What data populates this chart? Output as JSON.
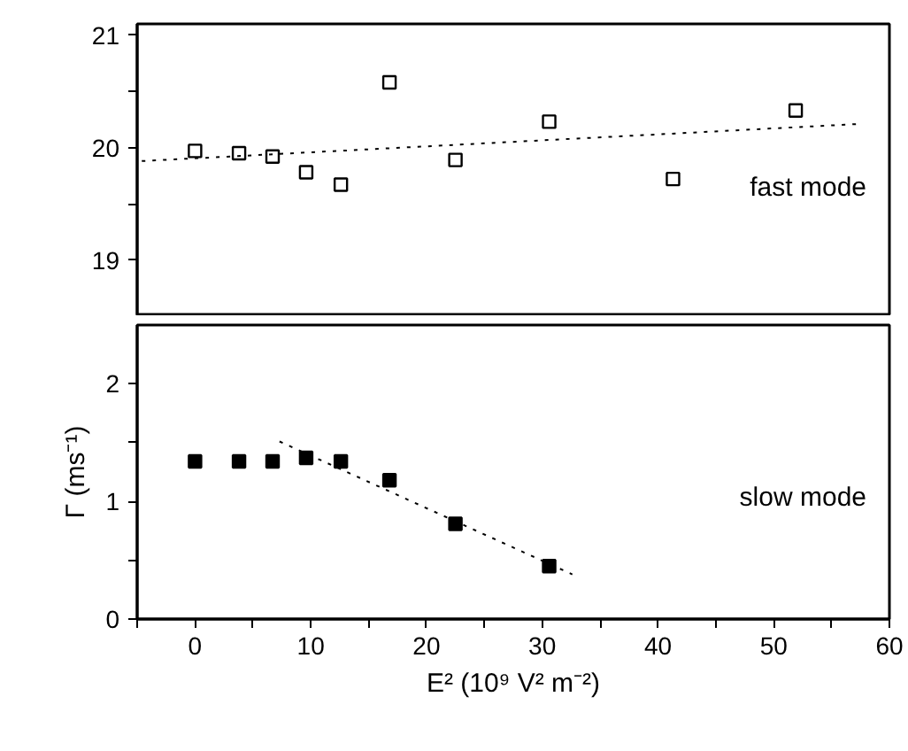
{
  "chart_data": [
    {
      "type": "scatter",
      "ylim": [
        18.5,
        21.1
      ],
      "yticks": [
        19,
        {
          "value": 19.5,
          "label": null
        },
        20,
        {
          "value": 20.5,
          "label": null
        },
        21
      ],
      "xlim": [
        -5,
        60
      ],
      "tick_labels": "y",
      "grid": false,
      "annotations": [
        "fast mode"
      ],
      "series": [
        {
          "marker": "square",
          "color": "#000000",
          "x": [
            0,
            3.8,
            6.7,
            9.6,
            12.6,
            16.8,
            22.5,
            30.6,
            41.3,
            51.9
          ],
          "values": [
            19.97,
            19.95,
            19.92,
            19.78,
            19.67,
            20.58,
            19.89,
            20.23,
            19.72,
            20.33
          ]
        },
        {
          "type": "line",
          "line_style": "dotted",
          "color": "#000000",
          "x": [
            -4.6,
            57.4
          ],
          "values": [
            19.88,
            20.21
          ]
        }
      ]
    },
    {
      "type": "scatter",
      "ylim": [
        0,
        2.5
      ],
      "yticks": [
        0,
        {
          "value": 0.5,
          "label": null
        },
        1,
        {
          "value": 1.5,
          "label": null
        },
        2
      ],
      "xlim": [
        -5,
        60
      ],
      "xticks": [
        {
          "value": -5,
          "label": null
        },
        0,
        {
          "value": 5,
          "label": null
        },
        10,
        {
          "value": 15,
          "label": null
        },
        20,
        {
          "value": 25,
          "label": null
        },
        30,
        {
          "value": 35,
          "label": null
        },
        40,
        {
          "value": 45,
          "label": null
        },
        50,
        {
          "value": 55,
          "label": null
        },
        60
      ],
      "xlabel": "E² (10⁹ V² m⁻²)",
      "ylabel": "Γ (ms⁻¹)",
      "grid": false,
      "annotations": [
        "slow mode"
      ],
      "series": [
        {
          "marker": "square",
          "color": "#000000",
          "x": [
            0,
            3.8,
            6.7,
            9.6,
            12.6,
            16.8,
            22.5,
            30.6
          ],
          "values": [
            1.34,
            1.34,
            1.34,
            1.37,
            1.34,
            1.18,
            0.81,
            0.45
          ]
        },
        {
          "type": "line",
          "line_style": "dotted",
          "color": "#000000",
          "x": [
            7.3,
            32.6
          ],
          "values": [
            1.51,
            0.38
          ]
        }
      ]
    }
  ]
}
